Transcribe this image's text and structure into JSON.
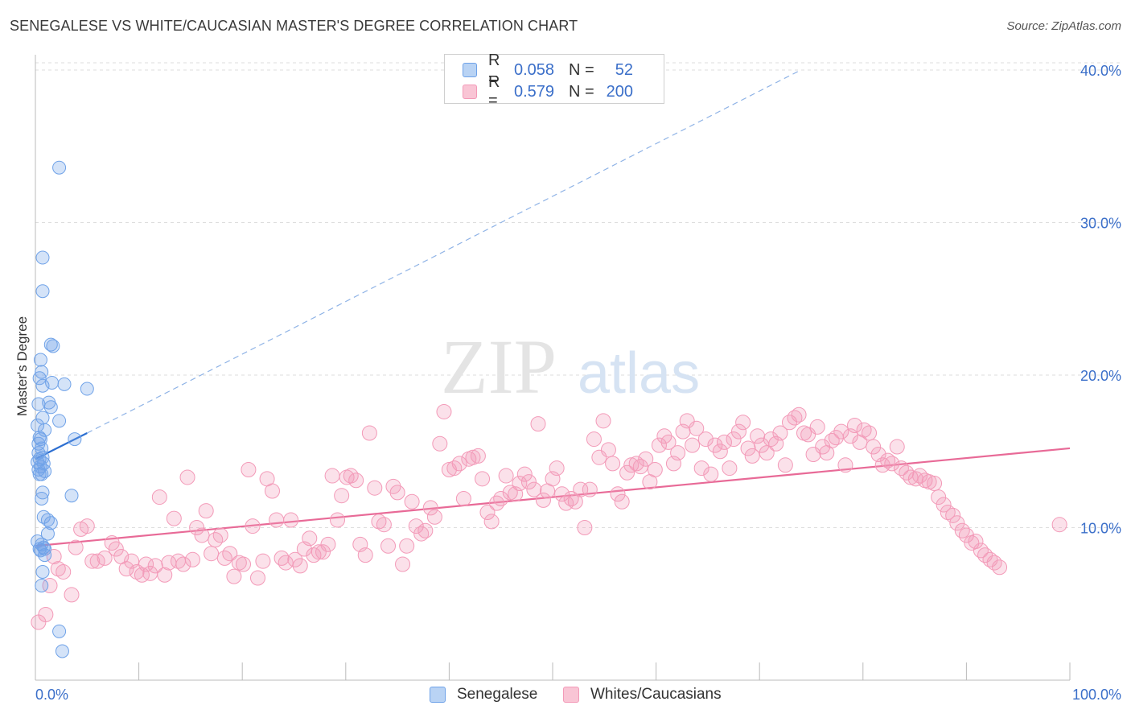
{
  "title": "SENEGALESE VS WHITE/CAUCASIAN MASTER'S DEGREE CORRELATION CHART",
  "source": "Source: ZipAtlas.com",
  "watermark": {
    "zip": "ZIP",
    "atlas": "atlas"
  },
  "legend": {
    "rows": [
      {
        "r_label": "R =",
        "r_value": "0.058",
        "n_label": "N =",
        "n_value": "52",
        "color": "#6fa2e8"
      },
      {
        "r_label": "R =",
        "r_value": "0.579",
        "n_label": "N =",
        "n_value": "200",
        "color": "#f39ab8"
      }
    ]
  },
  "chart_data": {
    "type": "scatter",
    "title": "SENEGALESE VS WHITE/CAUCASIAN MASTER'S DEGREE CORRELATION CHART",
    "xlabel": "",
    "ylabel": "Master's Degree",
    "xlim": [
      0,
      100
    ],
    "ylim": [
      0,
      41
    ],
    "x_tick_labels": [
      "0.0%",
      "100.0%"
    ],
    "y_ticks": [
      10,
      20,
      30,
      40
    ],
    "y_tick_labels": [
      "10.0%",
      "20.0%",
      "30.0%",
      "40.0%"
    ],
    "grid": true,
    "legend_position": "top-center",
    "series": [
      {
        "name": "Senegalese",
        "color": "#6fa2e8",
        "trend": {
          "x0": 0,
          "y0": 14.5,
          "x1": 5,
          "y1": 16.2,
          "dashed_to": [
            74,
            40
          ]
        },
        "points": [
          [
            2.3,
            33.6
          ],
          [
            0.7,
            27.7
          ],
          [
            0.7,
            25.5
          ],
          [
            1.5,
            22.0
          ],
          [
            1.7,
            21.9
          ],
          [
            0.5,
            21.0
          ],
          [
            0.6,
            20.2
          ],
          [
            0.4,
            19.8
          ],
          [
            1.6,
            19.5
          ],
          [
            2.8,
            19.4
          ],
          [
            0.7,
            19.3
          ],
          [
            5.0,
            19.1
          ],
          [
            1.3,
            18.2
          ],
          [
            0.3,
            18.1
          ],
          [
            1.5,
            17.9
          ],
          [
            0.7,
            17.2
          ],
          [
            2.3,
            17.0
          ],
          [
            0.2,
            16.7
          ],
          [
            0.9,
            16.4
          ],
          [
            0.4,
            15.9
          ],
          [
            0.5,
            15.8
          ],
          [
            3.8,
            15.8
          ],
          [
            0.3,
            15.5
          ],
          [
            0.6,
            15.2
          ],
          [
            0.3,
            14.9
          ],
          [
            0.7,
            14.6
          ],
          [
            0.4,
            14.5
          ],
          [
            0.2,
            14.3
          ],
          [
            0.8,
            14.2
          ],
          [
            0.5,
            14.0
          ],
          [
            0.3,
            13.8
          ],
          [
            0.9,
            13.7
          ],
          [
            0.6,
            13.5
          ],
          [
            0.4,
            13.5
          ],
          [
            0.7,
            12.3
          ],
          [
            3.5,
            12.1
          ],
          [
            0.6,
            11.9
          ],
          [
            0.8,
            10.7
          ],
          [
            1.2,
            10.5
          ],
          [
            1.5,
            10.3
          ],
          [
            1.2,
            9.6
          ],
          [
            0.6,
            8.9
          ],
          [
            0.8,
            8.7
          ],
          [
            0.4,
            8.6
          ],
          [
            0.9,
            8.6
          ],
          [
            0.5,
            8.5
          ],
          [
            0.9,
            8.2
          ],
          [
            0.7,
            7.1
          ],
          [
            0.6,
            6.2
          ],
          [
            2.3,
            3.2
          ],
          [
            2.6,
            1.9
          ],
          [
            0.2,
            9.1
          ]
        ]
      },
      {
        "name": "Whites/Caucasians",
        "color": "#f39ab8",
        "trend": {
          "x0": 0,
          "y0": 8.8,
          "x1": 100,
          "y1": 15.2
        },
        "points": [
          [
            0.3,
            3.8
          ],
          [
            1.0,
            4.3
          ],
          [
            1.4,
            6.2
          ],
          [
            1.8,
            8.1
          ],
          [
            2.2,
            7.3
          ],
          [
            2.7,
            7.1
          ],
          [
            3.5,
            5.6
          ],
          [
            3.9,
            8.7
          ],
          [
            4.4,
            9.9
          ],
          [
            5.0,
            10.1
          ],
          [
            5.5,
            7.8
          ],
          [
            6.0,
            7.8
          ],
          [
            6.7,
            8.0
          ],
          [
            7.4,
            9.0
          ],
          [
            7.8,
            8.6
          ],
          [
            8.3,
            8.1
          ],
          [
            8.8,
            7.3
          ],
          [
            9.3,
            7.8
          ],
          [
            9.8,
            7.1
          ],
          [
            10.3,
            6.9
          ],
          [
            10.7,
            7.6
          ],
          [
            11.1,
            7.0
          ],
          [
            11.6,
            7.5
          ],
          [
            12.0,
            12.0
          ],
          [
            12.5,
            6.9
          ],
          [
            12.9,
            7.7
          ],
          [
            13.4,
            10.6
          ],
          [
            13.8,
            7.8
          ],
          [
            14.3,
            7.6
          ],
          [
            14.7,
            13.3
          ],
          [
            15.2,
            7.9
          ],
          [
            15.6,
            10.0
          ],
          [
            16.1,
            9.5
          ],
          [
            16.5,
            11.1
          ],
          [
            17.0,
            8.3
          ],
          [
            17.4,
            9.2
          ],
          [
            17.9,
            9.5
          ],
          [
            18.3,
            8.0
          ],
          [
            18.8,
            8.3
          ],
          [
            19.2,
            6.8
          ],
          [
            19.7,
            7.7
          ],
          [
            20.1,
            7.6
          ],
          [
            20.6,
            13.8
          ],
          [
            21.0,
            10.1
          ],
          [
            21.5,
            6.7
          ],
          [
            22.0,
            7.8
          ],
          [
            22.4,
            13.2
          ],
          [
            22.9,
            12.4
          ],
          [
            23.3,
            10.5
          ],
          [
            23.8,
            8.0
          ],
          [
            24.2,
            7.7
          ],
          [
            24.7,
            10.5
          ],
          [
            25.1,
            7.9
          ],
          [
            25.6,
            7.5
          ],
          [
            26.0,
            8.6
          ],
          [
            26.5,
            9.3
          ],
          [
            26.9,
            8.2
          ],
          [
            27.4,
            8.4
          ],
          [
            27.8,
            8.4
          ],
          [
            28.3,
            8.9
          ],
          [
            28.7,
            13.4
          ],
          [
            29.2,
            10.5
          ],
          [
            29.6,
            12.1
          ],
          [
            30.1,
            13.3
          ],
          [
            30.5,
            13.4
          ],
          [
            31.0,
            13.1
          ],
          [
            31.4,
            8.9
          ],
          [
            31.9,
            8.2
          ],
          [
            32.3,
            16.2
          ],
          [
            32.8,
            12.6
          ],
          [
            33.2,
            10.4
          ],
          [
            33.7,
            10.2
          ],
          [
            34.1,
            8.8
          ],
          [
            34.6,
            12.7
          ],
          [
            35.0,
            12.3
          ],
          [
            35.5,
            7.6
          ],
          [
            35.9,
            8.8
          ],
          [
            36.4,
            11.7
          ],
          [
            36.8,
            10.1
          ],
          [
            37.3,
            9.6
          ],
          [
            37.7,
            9.8
          ],
          [
            38.2,
            11.3
          ],
          [
            38.6,
            10.7
          ],
          [
            39.1,
            15.5
          ],
          [
            39.5,
            17.6
          ],
          [
            40.0,
            13.8
          ],
          [
            40.5,
            13.9
          ],
          [
            41.0,
            14.2
          ],
          [
            41.4,
            11.9
          ],
          [
            41.9,
            14.5
          ],
          [
            42.3,
            14.6
          ],
          [
            42.8,
            14.7
          ],
          [
            43.2,
            13.2
          ],
          [
            43.7,
            11.0
          ],
          [
            44.1,
            10.4
          ],
          [
            44.6,
            11.6
          ],
          [
            45.0,
            11.9
          ],
          [
            45.5,
            13.4
          ],
          [
            45.9,
            12.3
          ],
          [
            46.4,
            12.2
          ],
          [
            46.8,
            12.9
          ],
          [
            47.3,
            13.5
          ],
          [
            47.7,
            13.0
          ],
          [
            48.2,
            12.5
          ],
          [
            48.6,
            16.8
          ],
          [
            49.1,
            11.8
          ],
          [
            49.5,
            12.4
          ],
          [
            50.0,
            13.2
          ],
          [
            50.4,
            13.9
          ],
          [
            50.9,
            12.2
          ],
          [
            51.3,
            11.6
          ],
          [
            51.8,
            11.9
          ],
          [
            52.2,
            11.7
          ],
          [
            52.7,
            12.5
          ],
          [
            53.1,
            10.0
          ],
          [
            53.6,
            12.5
          ],
          [
            54.0,
            15.8
          ],
          [
            54.5,
            14.6
          ],
          [
            54.9,
            17.0
          ],
          [
            55.4,
            15.1
          ],
          [
            55.8,
            14.2
          ],
          [
            56.3,
            12.2
          ],
          [
            56.7,
            11.7
          ],
          [
            57.2,
            13.6
          ],
          [
            57.6,
            14.1
          ],
          [
            58.1,
            14.2
          ],
          [
            58.5,
            14.0
          ],
          [
            59.0,
            14.5
          ],
          [
            59.4,
            13.0
          ],
          [
            59.9,
            13.8
          ],
          [
            60.3,
            15.4
          ],
          [
            60.8,
            16.0
          ],
          [
            61.2,
            15.6
          ],
          [
            61.7,
            14.2
          ],
          [
            62.1,
            14.9
          ],
          [
            62.6,
            16.3
          ],
          [
            63.0,
            17.0
          ],
          [
            63.5,
            15.4
          ],
          [
            63.9,
            16.5
          ],
          [
            64.4,
            13.9
          ],
          [
            64.8,
            15.8
          ],
          [
            65.3,
            13.5
          ],
          [
            65.7,
            15.4
          ],
          [
            66.2,
            15.0
          ],
          [
            66.6,
            15.6
          ],
          [
            67.1,
            13.9
          ],
          [
            67.5,
            15.8
          ],
          [
            68.0,
            16.3
          ],
          [
            68.4,
            16.9
          ],
          [
            68.9,
            15.2
          ],
          [
            69.3,
            14.7
          ],
          [
            69.8,
            16.0
          ],
          [
            70.2,
            15.4
          ],
          [
            70.7,
            14.9
          ],
          [
            71.1,
            15.8
          ],
          [
            71.6,
            15.5
          ],
          [
            72.0,
            16.2
          ],
          [
            72.5,
            14.1
          ],
          [
            72.9,
            16.9
          ],
          [
            73.4,
            17.2
          ],
          [
            73.8,
            17.4
          ],
          [
            74.3,
            16.2
          ],
          [
            74.7,
            16.1
          ],
          [
            75.2,
            14.8
          ],
          [
            75.6,
            16.6
          ],
          [
            76.1,
            15.3
          ],
          [
            76.5,
            14.9
          ],
          [
            77.0,
            15.7
          ],
          [
            77.4,
            15.9
          ],
          [
            77.9,
            16.3
          ],
          [
            78.3,
            14.1
          ],
          [
            78.8,
            16.0
          ],
          [
            79.2,
            16.7
          ],
          [
            79.7,
            15.6
          ],
          [
            80.1,
            16.4
          ],
          [
            80.6,
            16.2
          ],
          [
            81.0,
            15.3
          ],
          [
            81.5,
            14.8
          ],
          [
            81.9,
            14.1
          ],
          [
            82.4,
            14.4
          ],
          [
            82.8,
            14.2
          ],
          [
            83.3,
            15.3
          ],
          [
            83.7,
            13.9
          ],
          [
            84.2,
            13.6
          ],
          [
            84.6,
            13.3
          ],
          [
            85.1,
            13.2
          ],
          [
            85.5,
            13.4
          ],
          [
            86.0,
            13.1
          ],
          [
            86.4,
            13.0
          ],
          [
            86.9,
            12.9
          ],
          [
            87.3,
            12.0
          ],
          [
            87.8,
            11.5
          ],
          [
            88.2,
            11.0
          ],
          [
            88.7,
            10.8
          ],
          [
            89.1,
            10.3
          ],
          [
            89.6,
            9.8
          ],
          [
            90.0,
            9.5
          ],
          [
            90.5,
            9.0
          ],
          [
            90.9,
            9.1
          ],
          [
            91.4,
            8.5
          ],
          [
            91.8,
            8.2
          ],
          [
            92.3,
            7.9
          ],
          [
            92.7,
            7.7
          ],
          [
            93.2,
            7.4
          ],
          [
            99.0,
            10.2
          ]
        ]
      }
    ]
  }
}
